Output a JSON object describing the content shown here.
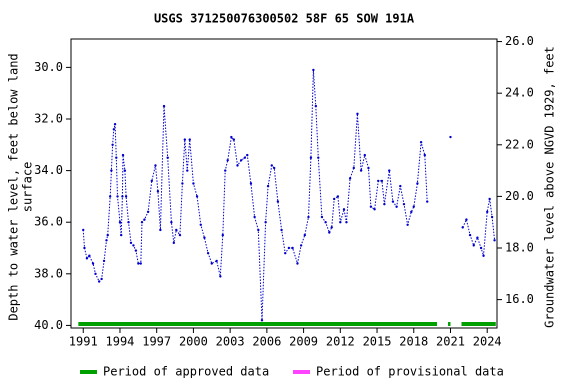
{
  "chart_data": {
    "type": "line",
    "title": "USGS 371250076300502 58F 65 SOW 191A",
    "ylabel_lines": [
      "Depth to water level, feet below land",
      "surface"
    ],
    "y2label": "Groundwater level above NGVD 1929, feet",
    "xlim": [
      1990.0,
      2024.8
    ],
    "xticks": [
      1991,
      1994,
      1997,
      2000,
      2003,
      2006,
      2009,
      2012,
      2015,
      2018,
      2021,
      2024
    ],
    "ylim": [
      40.1,
      28.9
    ],
    "yticks": [
      {
        "value": 30,
        "label": "30.0"
      },
      {
        "value": 32,
        "label": "32.0"
      },
      {
        "value": 34,
        "label": "34.0"
      },
      {
        "value": 36,
        "label": "36.0"
      },
      {
        "value": 38,
        "label": "38.0"
      },
      {
        "value": 40,
        "label": "40.0"
      }
    ],
    "y2lim": [
      14.9,
      26.1
    ],
    "y2ticks": [
      {
        "value": 16,
        "label": "16.0"
      },
      {
        "value": 18,
        "label": "18.0"
      },
      {
        "value": 20,
        "label": "20.0"
      },
      {
        "value": 22,
        "label": "22.0"
      },
      {
        "value": 24,
        "label": "24.0"
      },
      {
        "value": 26,
        "label": "26.0"
      }
    ],
    "x": [
      1991.0,
      1991.1,
      1991.3,
      1991.5,
      1991.8,
      1992.0,
      1992.3,
      1992.5,
      1992.7,
      1992.9,
      1993.0,
      1993.2,
      1993.3,
      1993.4,
      1993.5,
      1993.6,
      1993.7,
      1993.8,
      1994.0,
      1994.1,
      1994.2,
      1994.25,
      1994.4,
      1994.5,
      1994.7,
      1994.9,
      1995.1,
      1995.3,
      1995.5,
      1995.7,
      1995.8,
      1996.0,
      1996.3,
      1996.6,
      1996.9,
      1997.1,
      1997.3,
      1997.6,
      1997.9,
      1998.2,
      1998.4,
      1998.6,
      1998.9,
      1999.1,
      1999.3,
      1999.5,
      1999.7,
      2000.0,
      2000.3,
      2000.6,
      2000.9,
      2001.2,
      2001.5,
      2001.9,
      2002.2,
      2002.4,
      2002.6,
      2002.8,
      2003.1,
      2003.3,
      2003.6,
      2003.9,
      2004.2,
      2004.4,
      2004.7,
      2005.0,
      2005.3,
      2005.6,
      2005.9,
      2006.1,
      2006.4,
      2006.6,
      2006.9,
      2007.2,
      2007.5,
      2007.8,
      2008.1,
      2008.5,
      2008.8,
      2009.1,
      2009.4,
      2009.6,
      2009.8,
      2010.0,
      2010.2,
      2010.5,
      2010.8,
      2011.1,
      2011.3,
      2011.5,
      2011.8,
      2012.0,
      2012.3,
      2012.5,
      2012.8,
      2013.1,
      2013.4,
      2013.7,
      2014.0,
      2014.3,
      2014.5,
      2014.8,
      2015.1,
      2015.4,
      2015.6,
      2016.0,
      2016.3,
      2016.6,
      2016.9,
      2017.2,
      2017.5,
      2017.8,
      2018.0,
      2018.3,
      2018.6,
      2018.9,
      2019.1,
      2020.0,
      2021.0,
      2021.5,
      2022.0,
      2022.3,
      2022.6,
      2022.9,
      2023.2,
      2023.5,
      2023.7,
      2024.0,
      2024.2,
      2024.4,
      2024.6
    ],
    "series": [
      {
        "name": "Depth to water level",
        "color": "#0000cc",
        "values": [
          36.3,
          37.0,
          37.4,
          37.3,
          37.6,
          38.0,
          38.3,
          38.2,
          37.5,
          36.7,
          36.5,
          35.0,
          34.0,
          33.0,
          32.4,
          32.2,
          33.5,
          35.0,
          36.0,
          36.5,
          35.0,
          33.4,
          34.0,
          35.0,
          36.0,
          36.8,
          36.9,
          37.1,
          37.6,
          37.6,
          36.0,
          35.9,
          35.6,
          34.4,
          33.8,
          34.8,
          36.3,
          31.5,
          33.5,
          36.0,
          36.8,
          36.3,
          36.5,
          34.5,
          32.8,
          34.0,
          32.8,
          34.5,
          35.0,
          36.1,
          36.6,
          37.2,
          37.6,
          37.5,
          38.1,
          36.5,
          34.0,
          33.6,
          32.7,
          32.8,
          33.8,
          33.6,
          33.5,
          33.4,
          34.5,
          35.8,
          36.3,
          39.8,
          36.0,
          34.6,
          33.8,
          33.9,
          35.2,
          36.3,
          37.2,
          37.0,
          37.0,
          37.6,
          36.9,
          36.5,
          35.8,
          33.5,
          30.1,
          31.5,
          33.5,
          35.8,
          36.0,
          36.4,
          36.2,
          35.1,
          35.0,
          36.0,
          35.5,
          36.0,
          34.3,
          33.9,
          31.8,
          34.0,
          33.4,
          33.9,
          35.4,
          35.5,
          34.4,
          34.4,
          35.3,
          34.0,
          35.2,
          35.4,
          34.6,
          35.3,
          36.1,
          35.6,
          35.4,
          34.5,
          32.9,
          33.4,
          35.2,
          null,
          32.7,
          null,
          36.2,
          35.9,
          36.5,
          36.9,
          36.6,
          37.0,
          37.3,
          35.6,
          35.1,
          35.8,
          36.7
        ]
      }
    ],
    "periods": [
      {
        "name": "Period of approved data",
        "color": "#00a000",
        "ranges": [
          [
            1990.6,
            2019.9
          ],
          [
            2020.8,
            2021.0
          ],
          [
            2021.9,
            2024.7
          ]
        ]
      },
      {
        "name": "Period of provisional data",
        "color": "#ff44ff",
        "ranges": []
      }
    ]
  }
}
